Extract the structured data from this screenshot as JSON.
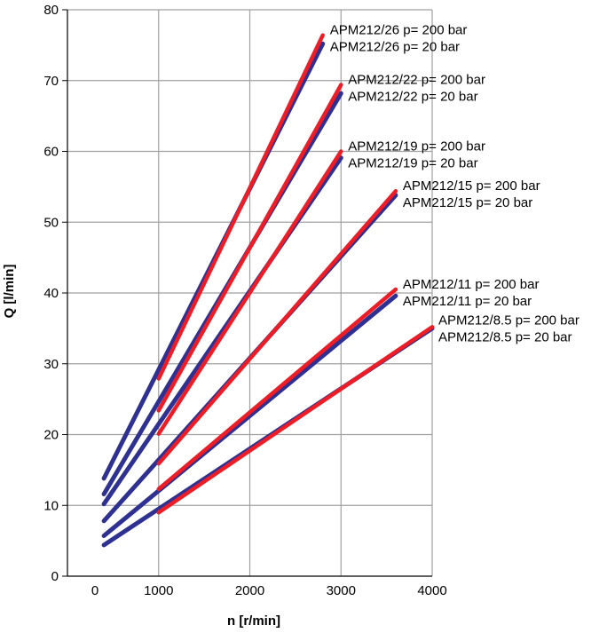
{
  "chart_data": {
    "type": "line",
    "xlabel": "n [r/min]",
    "ylabel": "Q [l/min]",
    "xlim": [
      0,
      4000
    ],
    "ylim": [
      0,
      80
    ],
    "x_ticks": [
      "0",
      "1000",
      "2000",
      "3000",
      "4000"
    ],
    "y_ticks": [
      "0",
      "10",
      "20",
      "30",
      "40",
      "50",
      "60",
      "70",
      "80"
    ],
    "grid": true,
    "colors": {
      "low_pressure": "#2e3192",
      "high_pressure": "#ee1c25",
      "grid": "#a0a0a0"
    },
    "series": [
      {
        "name": "APM212/8.5 p= 200 bar",
        "color": "#ee1c25",
        "points": [
          [
            1000,
            9.0
          ],
          [
            4000,
            35.2
          ]
        ]
      },
      {
        "name": "APM212/8.5 p= 20 bar",
        "color": "#2e3192",
        "points": [
          [
            400,
            4.4
          ],
          [
            4000,
            35.0
          ]
        ]
      },
      {
        "name": "APM212/11 p= 200 bar",
        "color": "#ee1c25",
        "points": [
          [
            1000,
            12.3
          ],
          [
            3600,
            40.5
          ]
        ]
      },
      {
        "name": "APM212/11 p= 20 bar",
        "color": "#2e3192",
        "points": [
          [
            400,
            5.7
          ],
          [
            3600,
            39.6
          ]
        ]
      },
      {
        "name": "APM212/15 p= 200 bar",
        "color": "#ee1c25",
        "points": [
          [
            1000,
            15.9
          ],
          [
            3600,
            54.4
          ]
        ]
      },
      {
        "name": "APM212/15 p= 20 bar",
        "color": "#2e3192",
        "points": [
          [
            400,
            7.8
          ],
          [
            3600,
            53.8
          ]
        ]
      },
      {
        "name": "APM212/19 p= 200 bar",
        "color": "#ee1c25",
        "points": [
          [
            1000,
            20.1
          ],
          [
            3000,
            60.0
          ]
        ]
      },
      {
        "name": "APM212/19 p= 20 bar",
        "color": "#2e3192",
        "points": [
          [
            400,
            10.2
          ],
          [
            3000,
            59.1
          ]
        ]
      },
      {
        "name": "APM212/22 p= 200 bar",
        "color": "#ee1c25",
        "points": [
          [
            1000,
            23.4
          ],
          [
            3000,
            69.4
          ]
        ]
      },
      {
        "name": "APM212/22 p= 20 bar",
        "color": "#2e3192",
        "points": [
          [
            400,
            11.6
          ],
          [
            3000,
            68.2
          ]
        ]
      },
      {
        "name": "APM212/26 p= 200 bar",
        "color": "#ee1c25",
        "points": [
          [
            1000,
            27.9
          ],
          [
            2800,
            76.4
          ]
        ]
      },
      {
        "name": "APM212/26 p= 20 bar",
        "color": "#2e3192",
        "points": [
          [
            400,
            13.8
          ],
          [
            2800,
            75.2
          ]
        ]
      }
    ]
  }
}
